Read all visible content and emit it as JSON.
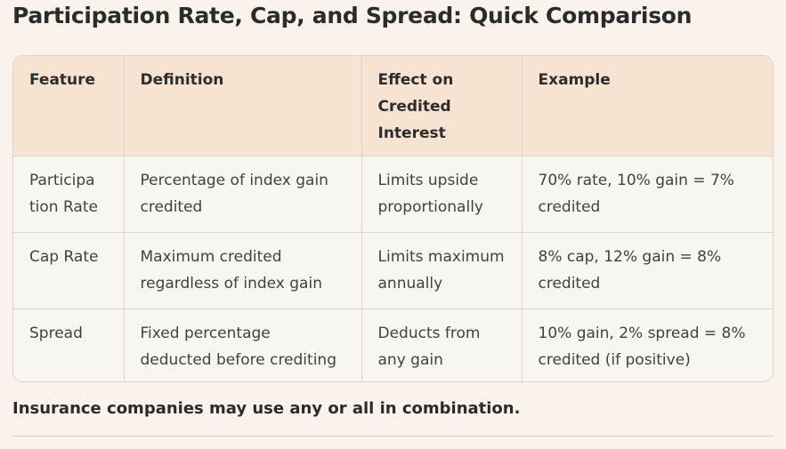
{
  "page": {
    "title": "Participation Rate, Cap, and Spread: Quick Comparison",
    "note": "Insurance companies may use any or all in combination."
  },
  "table": {
    "headers": [
      "Feature",
      "Definition",
      "Effect on Credited Interest",
      "Example"
    ],
    "rows": [
      {
        "feature": "Participation Rate",
        "definition": "Percentage of index gain credited",
        "effect": "Limits upside proportionally",
        "example": "70% rate, 10% gain = 7% credited"
      },
      {
        "feature": "Cap Rate",
        "definition": "Maximum credited regardless of index gain",
        "effect": "Limits maximum annually",
        "example": "8% cap, 12% gain = 8% credited"
      },
      {
        "feature": "Spread",
        "definition": "Fixed percentage deducted before crediting",
        "effect": "Deducts from any gain",
        "example": "10% gain, 2% spread = 8% credited (if positive)"
      }
    ]
  },
  "colors": {
    "page-bg": "#f9f3ec",
    "header-bg": "#f6e3d2",
    "cell-bg": "#f8f6f2",
    "border": "#e0d4c4",
    "title": "#2b2b2b",
    "head-text": "#2e2d2b",
    "body-text": "#414141",
    "rule": "#d6d0c8"
  }
}
